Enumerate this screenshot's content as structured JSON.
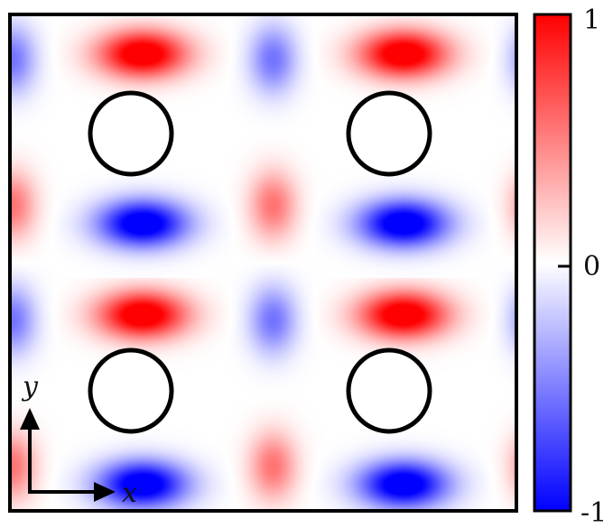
{
  "figure": {
    "description_type": "field-map",
    "colormap": {
      "low_color": "#0000ff",
      "mid_color": "#ffffff",
      "high_color": "#ff0000",
      "min_value": -1,
      "max_value": 1,
      "ticks": [
        {
          "value": 1,
          "label": "1"
        },
        {
          "value": 0,
          "label": "0"
        },
        {
          "value": -1,
          "label": "-1"
        }
      ]
    },
    "field": {
      "lobes": [
        {
          "col": 0.5,
          "row": 0.5,
          "value": 0.35,
          "shape": "small"
        },
        {
          "col": 0.5,
          "row": 2.5,
          "value": 0.35,
          "shape": "small"
        },
        {
          "col": 2.5,
          "row": 0.5,
          "value": 0.35,
          "shape": "small"
        },
        {
          "col": 2.5,
          "row": 2.5,
          "value": 0.35,
          "shape": "small"
        }
      ]
    },
    "inclusions": {
      "count_x": 2,
      "count_y": 2,
      "outline_color": "#000000",
      "fill_color": "#ffffff"
    },
    "frame_color": "#000000",
    "axes_indicator": {
      "x_label": "x",
      "y_label": "y"
    }
  }
}
